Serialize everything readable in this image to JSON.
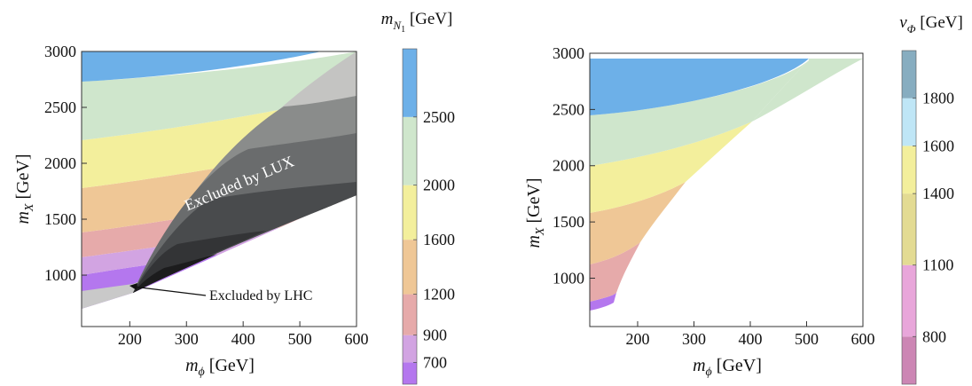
{
  "chart_data": [
    {
      "type": "contour",
      "title": "",
      "xlabel": {
        "symbol": "m",
        "subscript": "ϕ",
        "unit": " [GeV]"
      },
      "ylabel": {
        "symbol": "m",
        "subscript": "X",
        "unit": " [GeV]"
      },
      "xlim": [
        115,
        600
      ],
      "ylim": [
        540,
        3000
      ],
      "xticks": [
        200,
        300,
        400,
        500,
        600
      ],
      "yticks": [
        1000,
        1500,
        2000,
        2500,
        3000
      ],
      "colorbar": {
        "title": {
          "symbol": "m",
          "subscript": "N",
          "subsub": "1",
          "unit": " [GeV]"
        },
        "levels": [
          {
            "from": 540,
            "to": 700,
            "color": "#b477ee"
          },
          {
            "from": 700,
            "to": 900,
            "color": "#d2a4e2"
          },
          {
            "from": 900,
            "to": 1200,
            "color": "#e6aaaa"
          },
          {
            "from": 1200,
            "to": 1600,
            "color": "#efc796"
          },
          {
            "from": 1600,
            "to": 2000,
            "color": "#f3ef9c"
          },
          {
            "from": 2000,
            "to": 2500,
            "color": "#cfe6cc"
          },
          {
            "from": 2500,
            "to": 3000,
            "color": "#6db0e8"
          }
        ],
        "tick_labels": [
          700,
          900,
          1200,
          1600,
          2000,
          2500
        ]
      },
      "annotations": [
        {
          "text": "Excluded by LUX",
          "x": 375,
          "y": 1750,
          "rotation_deg": -23
        },
        {
          "text": "Excluded by LHC",
          "x": 395,
          "y": 760,
          "arrow_to": [
            210,
            820
          ]
        }
      ]
    },
    {
      "type": "contour",
      "title": "",
      "xlabel": {
        "symbol": "m",
        "subscript": "ϕ",
        "unit": " [GeV]"
      },
      "ylabel": {
        "symbol": "m",
        "subscript": "X",
        "unit": " [GeV]"
      },
      "xlim": [
        115,
        600
      ],
      "ylim": [
        570,
        3000
      ],
      "xticks": [
        200,
        300,
        400,
        500,
        600
      ],
      "yticks": [
        1000,
        1500,
        2000,
        2500,
        3000
      ],
      "colorbar": {
        "title": {
          "symbol": "v",
          "subscript": "Φ",
          "unit": " [GeV]"
        },
        "levels": [
          {
            "from": 600,
            "to": 800,
            "color": "#cc86b4"
          },
          {
            "from": 800,
            "to": 1100,
            "color": "#e8a6da"
          },
          {
            "from": 1100,
            "to": 1400,
            "color": "#e3db93"
          },
          {
            "from": 1400,
            "to": 1600,
            "color": "#f3ef9c"
          },
          {
            "from": 1600,
            "to": 1800,
            "color": "#bfe6f6"
          },
          {
            "from": 1800,
            "to": 2000,
            "color": "#87adc0"
          }
        ],
        "tick_labels": [
          800,
          1100,
          1400,
          1600,
          1800
        ]
      },
      "bands": [
        {
          "name": "purple",
          "color": "#b477ee"
        },
        {
          "name": "rose",
          "color": "#e6aaaa"
        },
        {
          "name": "orange",
          "color": "#efc796"
        },
        {
          "name": "yellow",
          "color": "#f3ef9c"
        },
        {
          "name": "green",
          "color": "#cfe6cc"
        },
        {
          "name": "blue",
          "color": "#6db0e8"
        }
      ]
    }
  ]
}
